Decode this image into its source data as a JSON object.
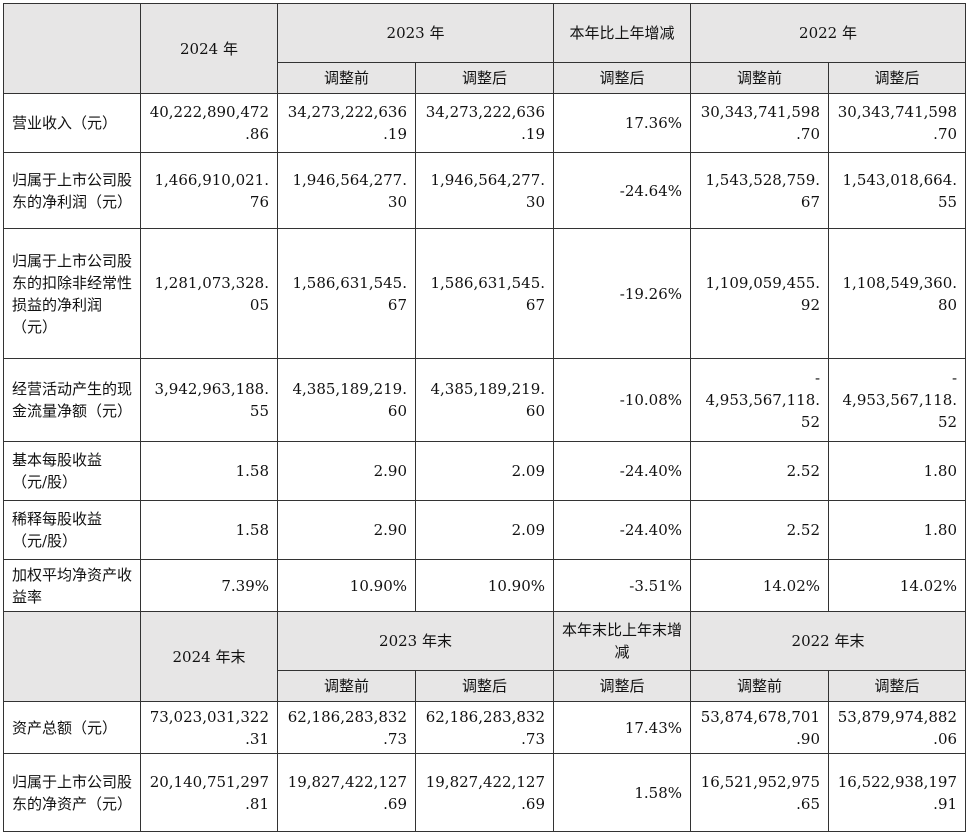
{
  "table1": {
    "header_top": [
      "",
      "2024 年",
      "2023 年",
      "本年比上年增减",
      "2022 年"
    ],
    "header_sub": [
      "调整前",
      "调整后",
      "调整后",
      "调整前",
      "调整后"
    ],
    "rows": [
      {
        "label": "营业收入（元）",
        "cells": [
          [
            "40,222,890,472",
            ".86"
          ],
          [
            "34,273,222,636",
            ".19"
          ],
          [
            "34,273,222,636",
            ".19"
          ],
          [
            "17.36%"
          ],
          [
            "30,343,741,598",
            ".70"
          ],
          [
            "30,343,741,598",
            ".70"
          ]
        ]
      },
      {
        "label": "归属于上市公司股东的净利润（元）",
        "cells": [
          [
            "1,466,910,021.",
            "76"
          ],
          [
            "1,946,564,277.",
            "30"
          ],
          [
            "1,946,564,277.",
            "30"
          ],
          [
            "-24.64%"
          ],
          [
            "1,543,528,759.",
            "67"
          ],
          [
            "1,543,018,664.",
            "55"
          ]
        ]
      },
      {
        "label": "归属于上市公司股东的扣除非经常性损益的净利润（元）",
        "cells": [
          [
            "1,281,073,328.",
            "05"
          ],
          [
            "1,586,631,545.",
            "67"
          ],
          [
            "1,586,631,545.",
            "67"
          ],
          [
            "-19.26%"
          ],
          [
            "1,109,059,455.",
            "92"
          ],
          [
            "1,108,549,360.",
            "80"
          ]
        ]
      },
      {
        "label": "经营活动产生的现金流量净额（元）",
        "cells": [
          [
            "3,942,963,188.",
            "55"
          ],
          [
            "4,385,189,219.",
            "60"
          ],
          [
            "4,385,189,219.",
            "60"
          ],
          [
            "-10.08%"
          ],
          [
            "-",
            "4,953,567,118.",
            "52"
          ],
          [
            "-",
            "4,953,567,118.",
            "52"
          ]
        ]
      },
      {
        "label": "基本每股收益（元/股）",
        "cells": [
          [
            "1.58"
          ],
          [
            "2.90"
          ],
          [
            "2.09"
          ],
          [
            "-24.40%"
          ],
          [
            "2.52"
          ],
          [
            "1.80"
          ]
        ]
      },
      {
        "label": "稀释每股收益（元/股）",
        "cells": [
          [
            "1.58"
          ],
          [
            "2.90"
          ],
          [
            "2.09"
          ],
          [
            "-24.40%"
          ],
          [
            "2.52"
          ],
          [
            "1.80"
          ]
        ]
      },
      {
        "label": "加权平均净资产收益率",
        "cells": [
          [
            "7.39%"
          ],
          [
            "10.90%"
          ],
          [
            "10.90%"
          ],
          [
            "-3.51%"
          ],
          [
            "14.02%"
          ],
          [
            "14.02%"
          ]
        ]
      }
    ]
  },
  "table2": {
    "header_top": [
      "",
      "2024 年末",
      "2023 年末",
      "本年末比上年末增减",
      "2022 年末"
    ],
    "header_sub": [
      "调整前",
      "调整后",
      "调整后",
      "调整前",
      "调整后"
    ],
    "rows": [
      {
        "label": "资产总额（元）",
        "cells": [
          [
            "73,023,031,322",
            ".31"
          ],
          [
            "62,186,283,832",
            ".73"
          ],
          [
            "62,186,283,832",
            ".73"
          ],
          [
            "17.43%"
          ],
          [
            "53,874,678,701",
            ".90"
          ],
          [
            "53,879,974,882",
            ".06"
          ]
        ]
      },
      {
        "label": "归属于上市公司股东的净资产（元）",
        "cells": [
          [
            "20,140,751,297",
            ".81"
          ],
          [
            "19,827,422,127",
            ".69"
          ],
          [
            "19,827,422,127",
            ".69"
          ],
          [
            "1.58%"
          ],
          [
            "16,521,952,975",
            ".65"
          ],
          [
            "16,522,938,197",
            ".91"
          ]
        ]
      }
    ]
  }
}
